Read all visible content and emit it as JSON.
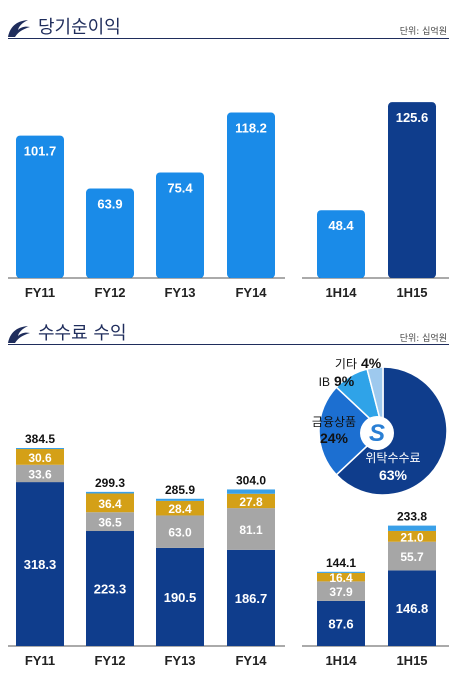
{
  "chart_data": [
    {
      "type": "bar",
      "title": "당기순이익",
      "unit_label": "단위: 십억원",
      "categories": [
        "FY11",
        "FY12",
        "FY13",
        "FY14",
        "1H14",
        "1H15"
      ],
      "values": [
        101.7,
        63.9,
        75.4,
        118.2,
        48.4,
        125.6
      ],
      "value_labels": [
        "101.7",
        "63.9",
        "75.4",
        "118.2",
        "48.4",
        "125.6"
      ],
      "colors": [
        "#1a8be8",
        "#1a8be8",
        "#1a8be8",
        "#1a8be8",
        "#1a8be8",
        "#0f3d8c"
      ],
      "ylim": [
        0,
        140
      ]
    },
    {
      "type": "bar",
      "stacked": true,
      "title": "수수료 수익",
      "unit_label": "단위: 십억원",
      "categories": [
        "FY11",
        "FY12",
        "FY13",
        "FY14",
        "1H14",
        "1H15"
      ],
      "totals": [
        "384.5",
        "299.3",
        "285.9",
        "304.0",
        "144.1",
        "233.8"
      ],
      "series": [
        {
          "values": [
            318.3,
            223.3,
            190.5,
            186.7,
            87.6,
            146.8
          ],
          "labels": [
            "318.3",
            "223.3",
            "190.5",
            "186.7",
            "87.6",
            "146.8"
          ],
          "color": "#0f3d8c"
        },
        {
          "values": [
            33.6,
            36.5,
            63.0,
            81.1,
            37.9,
            55.7
          ],
          "labels": [
            "33.6",
            "36.5",
            "63.0",
            "81.1",
            "37.9",
            "55.7"
          ],
          "color": "#a6a6a6"
        },
        {
          "values": [
            30.6,
            36.4,
            28.4,
            27.8,
            16.4,
            21.0
          ],
          "labels": [
            "30.6",
            "36.4",
            "28.4",
            "27.8",
            "16.4",
            "21.0"
          ],
          "color": "#d4a017"
        },
        {
          "values": [
            2.0,
            3.1,
            4.0,
            8.4,
            2.2,
            10.3
          ],
          "color": "#3aa0e8"
        }
      ],
      "ylim": [
        0,
        420
      ]
    },
    {
      "type": "pie",
      "slices": [
        {
          "label": "위탁수수료",
          "percent": 63,
          "value_label": "63%",
          "color": "#0f3d8c"
        },
        {
          "label": "금융상품",
          "percent": 24,
          "value_label": "24%",
          "color": "#1c6fd1"
        },
        {
          "label": "IB",
          "percent": 9,
          "value_label": "9%",
          "color": "#2fa3e8"
        },
        {
          "label": "기타",
          "percent": 4,
          "value_label": "4%",
          "color": "#9ec9ee"
        }
      ]
    }
  ],
  "colors": {
    "title": "#1f2d5c",
    "axis": "#555555"
  },
  "icons": {
    "section_logo": "swoosh-logo-icon",
    "pie_center_logo": "s-logo-icon"
  }
}
